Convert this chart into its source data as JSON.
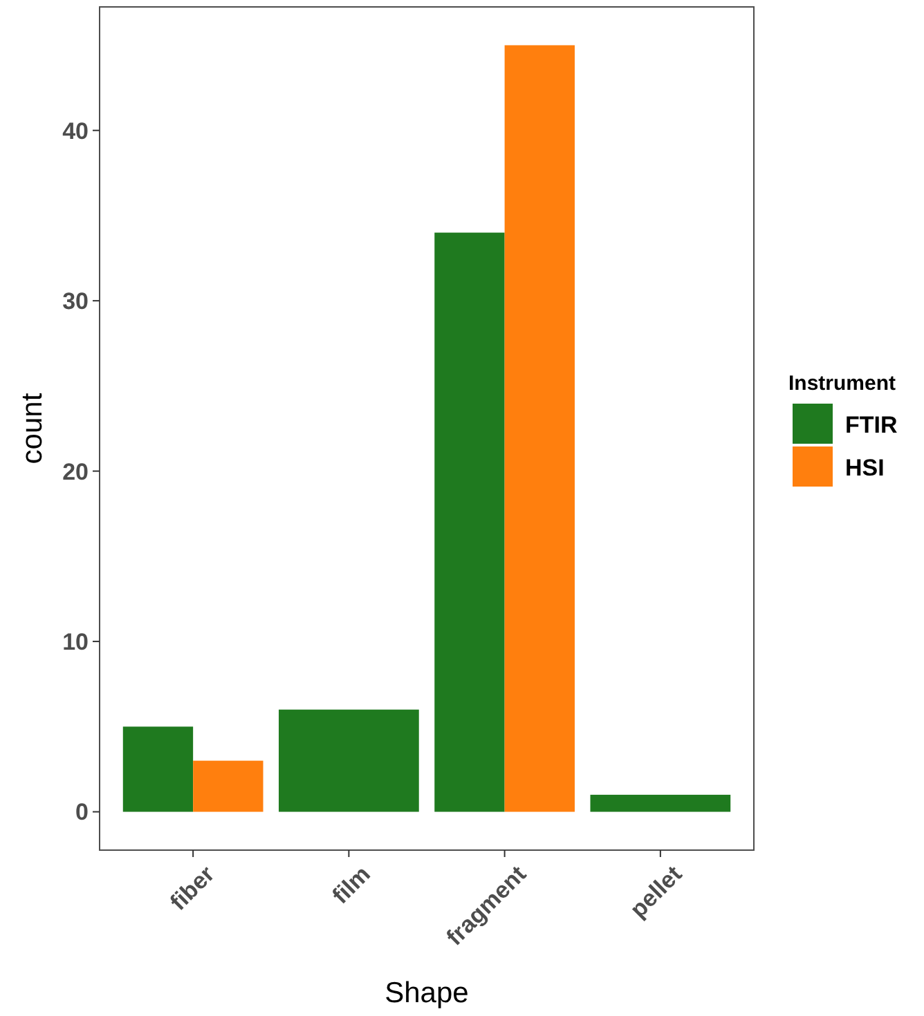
{
  "chart_data": {
    "type": "bar",
    "xlabel": "Shape",
    "ylabel": "count",
    "legend_title": "Instrument",
    "legend": "right",
    "grid": false,
    "categories": [
      "fiber",
      "film",
      "fragment",
      "pellet"
    ],
    "series": [
      {
        "name": "FTIR",
        "color": "#1f7a1f",
        "values": [
          5,
          6,
          34,
          1
        ]
      },
      {
        "name": "HSI",
        "color": "#ff7f0e",
        "values": [
          3,
          null,
          45,
          null
        ]
      }
    ],
    "ylim": [
      -2.25,
      47.25
    ],
    "yticks": [
      0,
      10,
      20,
      30,
      40
    ]
  }
}
